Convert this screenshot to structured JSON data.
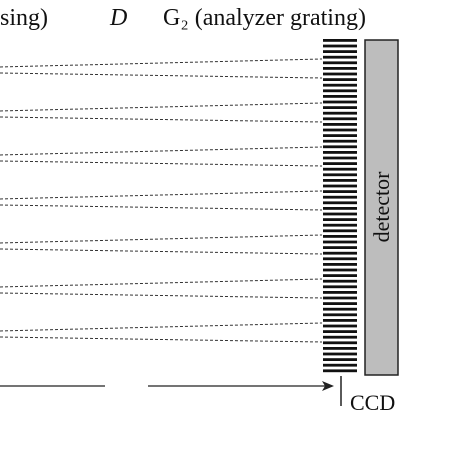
{
  "labels": {
    "left_fragment": "sing)",
    "distance": "D",
    "grating": "G₂ (analyzer grating)",
    "detector": "detector",
    "ccd": "CCD"
  }
}
